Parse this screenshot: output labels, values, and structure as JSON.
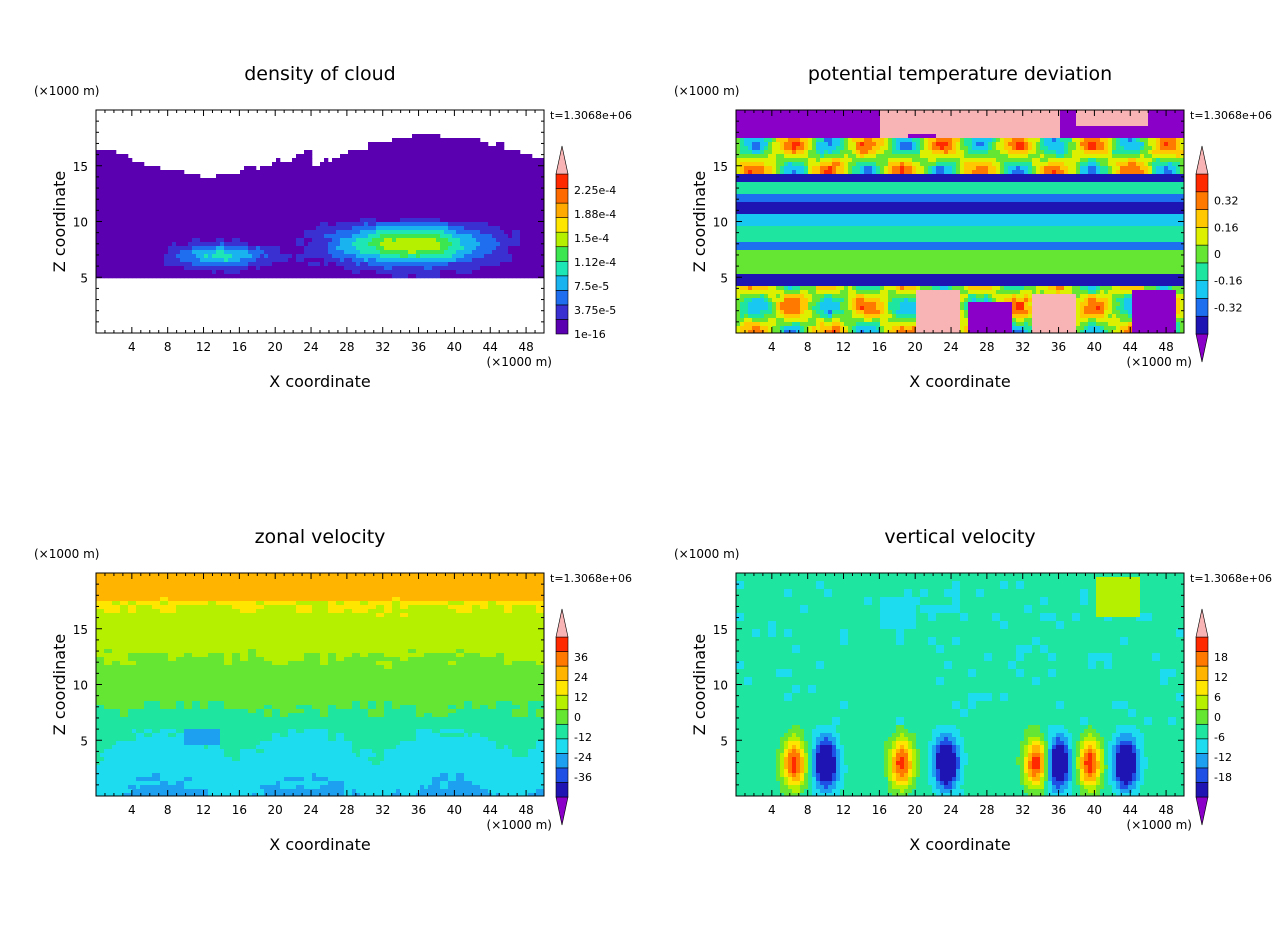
{
  "figure": {
    "xlabel": "X coordinate",
    "ylabel": "Z coordinate",
    "x_unit": "(×1000 m)",
    "y_unit": "(×1000 m)",
    "time_label": "t=1.3068e+06"
  },
  "chart_data": [
    {
      "type": "heatmap",
      "title": "density of cloud",
      "xlabel": "X coordinate",
      "ylabel": "Z coordinate",
      "xlim": [
        0,
        50
      ],
      "ylim": [
        0,
        20
      ],
      "xticks": [
        4,
        8,
        12,
        16,
        20,
        24,
        28,
        32,
        36,
        40,
        44,
        48
      ],
      "yticks": [
        5,
        10,
        15
      ],
      "colorbar": {
        "levels": [
          "1e-16",
          "3.75e-5",
          "7.5e-5",
          "1.12e-4",
          "1.5e-4",
          "1.88e-4",
          "2.25e-4"
        ],
        "colors": [
          "#5a00b0",
          "#3a2fd0",
          "#1f6ef0",
          "#19b3f0",
          "#1ee6b4",
          "#3ce650",
          "#b4f000",
          "#ffe600",
          "#ffaa00",
          "#ff6a00",
          "#ff2a00",
          "#f8b4b4"
        ],
        "triangle_bottom": false,
        "triangle_top": true
      },
      "field": "cloud",
      "background": "#ffffff"
    },
    {
      "type": "heatmap",
      "title": "potential temperature deviation",
      "xlabel": "X coordinate",
      "ylabel": "Z coordinate",
      "xlim": [
        0,
        50
      ],
      "ylim": [
        0,
        20
      ],
      "xticks": [
        4,
        8,
        12,
        16,
        20,
        24,
        28,
        32,
        36,
        40,
        44,
        48
      ],
      "yticks": [
        5,
        10,
        15
      ],
      "colorbar": {
        "levels": [
          "-0.32",
          "-0.16",
          "0",
          "0.16",
          "0.32"
        ],
        "colors": [
          "#8a00c8",
          "#1e14b4",
          "#1e6ef0",
          "#19c8f0",
          "#1ee6a0",
          "#64e632",
          "#dcf000",
          "#ffc800",
          "#ff7800",
          "#ff2a00",
          "#f8b4b4"
        ],
        "triangle_bottom": true,
        "triangle_top": true
      },
      "field": "theta",
      "background": "#6a00b4"
    },
    {
      "type": "heatmap",
      "title": "zonal velocity",
      "xlabel": "X coordinate",
      "ylabel": "Z coordinate",
      "xlim": [
        0,
        50
      ],
      "ylim": [
        0,
        20
      ],
      "xticks": [
        4,
        8,
        12,
        16,
        20,
        24,
        28,
        32,
        36,
        40,
        44,
        48
      ],
      "yticks": [
        5,
        10,
        15
      ],
      "colorbar": {
        "levels": [
          "-36",
          "-24",
          "-12",
          "0",
          "12",
          "24",
          "36"
        ],
        "colors": [
          "#8a00c8",
          "#1e14b4",
          "#1e50e6",
          "#1ea0f0",
          "#1edcf0",
          "#1ee6a0",
          "#64e632",
          "#b4f000",
          "#ffe600",
          "#ffb400",
          "#ff7800",
          "#ff2a00",
          "#f8b4b4"
        ],
        "triangle_bottom": true,
        "triangle_top": true
      },
      "field": "u",
      "background": "#6ef05a"
    },
    {
      "type": "heatmap",
      "title": "vertical velocity",
      "xlabel": "X coordinate",
      "ylabel": "Z coordinate",
      "xlim": [
        0,
        50
      ],
      "ylim": [
        0,
        20
      ],
      "xticks": [
        4,
        8,
        12,
        16,
        20,
        24,
        28,
        32,
        36,
        40,
        44,
        48
      ],
      "yticks": [
        5,
        10,
        15
      ],
      "colorbar": {
        "levels": [
          "-18",
          "-12",
          "-6",
          "0",
          "6",
          "12",
          "18"
        ],
        "colors": [
          "#8a00c8",
          "#1e14b4",
          "#1e50e6",
          "#1ea0f0",
          "#1edcf0",
          "#1ee6a0",
          "#64e632",
          "#b4f000",
          "#ffe600",
          "#ffb400",
          "#ff7800",
          "#ff2a00",
          "#f8b4b4"
        ],
        "triangle_bottom": true,
        "triangle_top": true
      },
      "field": "w",
      "background": "#28e6a0"
    }
  ]
}
